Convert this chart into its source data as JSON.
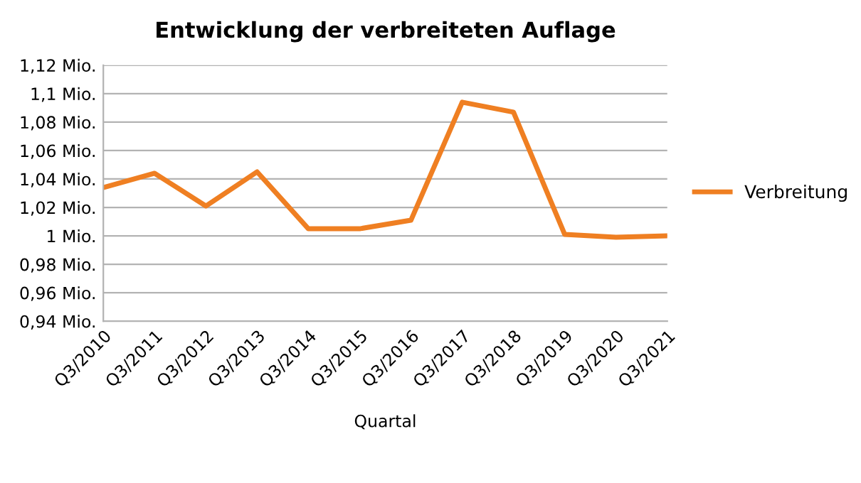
{
  "chart_data": {
    "type": "line",
    "title": "Entwicklung der verbreiteten Auflage",
    "xlabel": "Quartal",
    "categories": [
      "Q3/2010",
      "Q3/2011",
      "Q3/2012",
      "Q3/2013",
      "Q3/2014",
      "Q3/2015",
      "Q3/2016",
      "Q3/2017",
      "Q3/2018",
      "Q3/2019",
      "Q3/2020",
      "Q3/2021"
    ],
    "series": [
      {
        "name": "Verbreitung",
        "color": "#ef7f22",
        "values": [
          1.034,
          1.044,
          1.021,
          1.045,
          1.005,
          1.005,
          1.011,
          1.094,
          1.087,
          1.001,
          0.999,
          1.0
        ]
      }
    ],
    "ylim": [
      0.94,
      1.12
    ],
    "yticks": [
      {
        "value": 0.94,
        "label": "0,94 Mio."
      },
      {
        "value": 0.96,
        "label": "0,96 Mio."
      },
      {
        "value": 0.98,
        "label": "0,98 Mio."
      },
      {
        "value": 1.0,
        "label": "1 Mio."
      },
      {
        "value": 1.02,
        "label": "1,02 Mio."
      },
      {
        "value": 1.04,
        "label": "1,04 Mio."
      },
      {
        "value": 1.06,
        "label": "1,06 Mio."
      },
      {
        "value": 1.08,
        "label": "1,08 Mio."
      },
      {
        "value": 1.1,
        "label": "1,1 Mio."
      },
      {
        "value": 1.12,
        "label": "1,12 Mio."
      }
    ],
    "grid": "y",
    "legend": "right",
    "marker": "none",
    "line_style": "solid"
  }
}
